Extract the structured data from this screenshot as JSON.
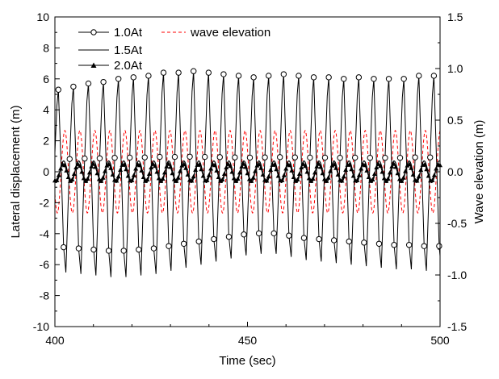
{
  "chart_data": {
    "type": "line",
    "title": "",
    "xlabel": "Time (sec)",
    "ylabel": "Lateral displacement (m)",
    "y2label": "Wave elevation (m)",
    "xlim": [
      400,
      500
    ],
    "ylim": [
      -10,
      10
    ],
    "y2lim": [
      -1.5,
      1.5
    ],
    "xticks": [
      400,
      450,
      500
    ],
    "yticks": [
      -10,
      -8,
      -6,
      -4,
      -2,
      0,
      2,
      4,
      6,
      8,
      10
    ],
    "y2ticks": [
      -1.5,
      -1.0,
      -0.5,
      0.0,
      0.5,
      1.0,
      1.5
    ],
    "legend_position": "top-left",
    "series": [
      {
        "name": "1.0At",
        "axis": "left",
        "color": "#000000",
        "marker": "open-circle",
        "period": 3.9,
        "phase": 400.9,
        "amplitude_start": 6.0,
        "amplitude_end": 6.3,
        "peaks": [
          5.3,
          5.5,
          5.7,
          5.8,
          6.0,
          6.1,
          6.2,
          6.4,
          6.4,
          6.5,
          6.4,
          6.3,
          6.2,
          6.1,
          6.2,
          6.3,
          6.2,
          6.1,
          6.1,
          6.0,
          6.1,
          6.0,
          6.0,
          6.0,
          6.2,
          6.2
        ],
        "troughs": [
          -6.5,
          -6.6,
          -6.7,
          -6.8,
          -6.8,
          -6.7,
          -6.6,
          -6.4,
          -6.2,
          -6.0,
          -5.8,
          -5.6,
          -5.4,
          -5.3,
          -5.3,
          -5.5,
          -5.7,
          -5.8,
          -5.9,
          -6.0,
          -6.1,
          -6.2,
          -6.3,
          -6.3,
          -6.4,
          -6.4
        ]
      },
      {
        "name": "1.5At",
        "axis": "left",
        "color": "#000000",
        "marker": "none",
        "period": 3.9,
        "phase": 401.3,
        "amplitude": 0.7,
        "offset": 0.0
      },
      {
        "name": "2.0At",
        "axis": "left",
        "color": "#000000",
        "marker": "filled-triangle",
        "period": 3.9,
        "phase": 401.2,
        "amplitude": 0.55,
        "offset": -0.05
      },
      {
        "name": "wave elevation",
        "axis": "right",
        "color": "#ff0000",
        "dash": "dashed",
        "period": 3.9,
        "phase": 401.6,
        "amplitude": 0.4,
        "offset": 0.0
      }
    ]
  }
}
